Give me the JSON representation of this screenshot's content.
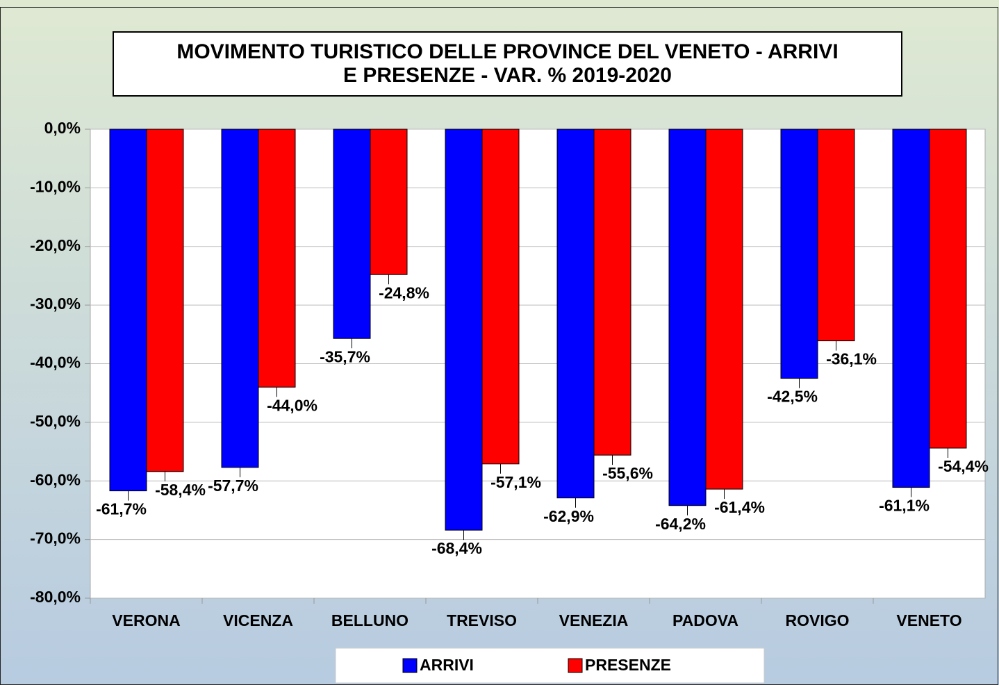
{
  "chart_data": {
    "type": "bar",
    "title": "MOVIMENTO TURISTICO DELLE PROVINCE DEL VENETO - ARRIVI\nE PRESENZE - VAR. % 2019-2020",
    "categories": [
      "VERONA",
      "VICENZA",
      "BELLUNO",
      "TREVISO",
      "VENEZIA",
      "PADOVA",
      "ROVIGO",
      "VENETO"
    ],
    "series": [
      {
        "name": "ARRIVI",
        "color": "#0000ff",
        "values": [
          -61.7,
          -57.7,
          -35.7,
          -68.4,
          -62.9,
          -64.2,
          -42.5,
          -61.1
        ],
        "value_labels": [
          "-61,7%",
          "-57,7%",
          "-35,7%",
          "-68,4%",
          "-62,9%",
          "-64,2%",
          "-42,5%",
          "-61,1%"
        ]
      },
      {
        "name": "PRESENZE",
        "color": "#ff0000",
        "values": [
          -58.4,
          -44.0,
          -24.8,
          -57.1,
          -55.6,
          -61.4,
          -36.1,
          -54.4
        ],
        "value_labels": [
          "-58,4%",
          "-44,0%",
          "-24,8%",
          "-57,1%",
          "-55,6%",
          "-61,4%",
          "-36,1%",
          "-54,4%"
        ]
      }
    ],
    "ylim": [
      -80,
      0
    ],
    "yticks": [
      {
        "value": 0,
        "label": "0,0%"
      },
      {
        "value": -10,
        "label": "-10,0%"
      },
      {
        "value": -20,
        "label": "-20,0%"
      },
      {
        "value": -30,
        "label": "-30,0%"
      },
      {
        "value": -40,
        "label": "-40,0%"
      },
      {
        "value": -50,
        "label": "-50,0%"
      },
      {
        "value": -60,
        "label": "-60,0%"
      },
      {
        "value": -70,
        "label": "-70,0%"
      },
      {
        "value": -80,
        "label": "-80,0%"
      }
    ],
    "grid": true,
    "legend": "bottom"
  }
}
